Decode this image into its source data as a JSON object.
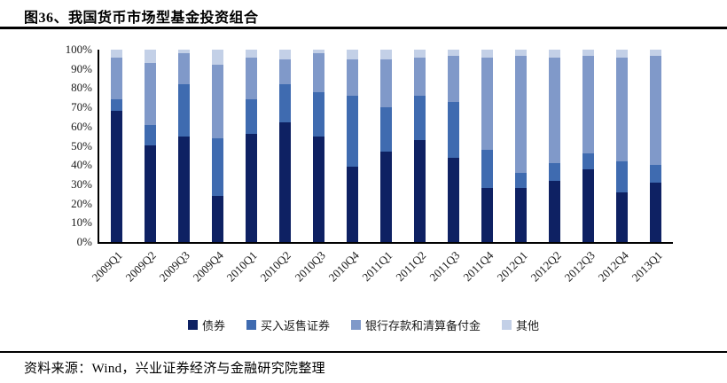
{
  "header": {
    "title": "图36、我国货币市场型基金投资组合"
  },
  "footer": {
    "source": "资料来源：Wind，兴业证券经济与金融研究院整理"
  },
  "chart_data": {
    "type": "bar",
    "stacked": true,
    "unit": "percent_of_total",
    "title": "图36、我国货币市场型基金投资组合",
    "categories": [
      "2009Q1",
      "2009Q2",
      "2009Q3",
      "2009Q4",
      "2010Q1",
      "2010Q2",
      "2010Q3",
      "2010Q4",
      "2011Q1",
      "2011Q2",
      "2011Q3",
      "2011Q4",
      "2012Q1",
      "2012Q2",
      "2012Q3",
      "2012Q4",
      "2013Q1"
    ],
    "series": [
      {
        "name": "债券",
        "color": "#0E2163",
        "values": [
          68,
          50,
          55,
          24,
          56,
          62,
          55,
          39,
          47,
          53,
          44,
          28,
          28,
          32,
          38,
          26,
          31
        ]
      },
      {
        "name": "买入返售证券",
        "color": "#3F6BB0",
        "values": [
          6,
          11,
          27,
          30,
          18,
          20,
          23,
          37,
          23,
          23,
          29,
          20,
          8,
          9,
          8,
          16,
          9
        ]
      },
      {
        "name": "银行存款和清算备付金",
        "color": "#8099C9",
        "values": [
          22,
          32,
          16,
          38,
          22,
          13,
          20,
          19,
          25,
          20,
          24,
          48,
          61,
          55,
          51,
          54,
          57
        ]
      },
      {
        "name": "其他",
        "color": "#C3D0E7",
        "values": [
          4,
          7,
          2,
          8,
          4,
          5,
          2,
          5,
          5,
          4,
          3,
          4,
          3,
          4,
          3,
          4,
          3
        ]
      }
    ],
    "xlabel": "",
    "ylabel": "",
    "ylim": [
      0,
      100
    ],
    "yticks": [
      "0%",
      "10%",
      "20%",
      "30%",
      "40%",
      "50%",
      "60%",
      "70%",
      "80%",
      "90%",
      "100%"
    ],
    "grid": false,
    "legend_position": "bottom",
    "xlabel_rotation": -45,
    "axis_color": "#000000"
  }
}
